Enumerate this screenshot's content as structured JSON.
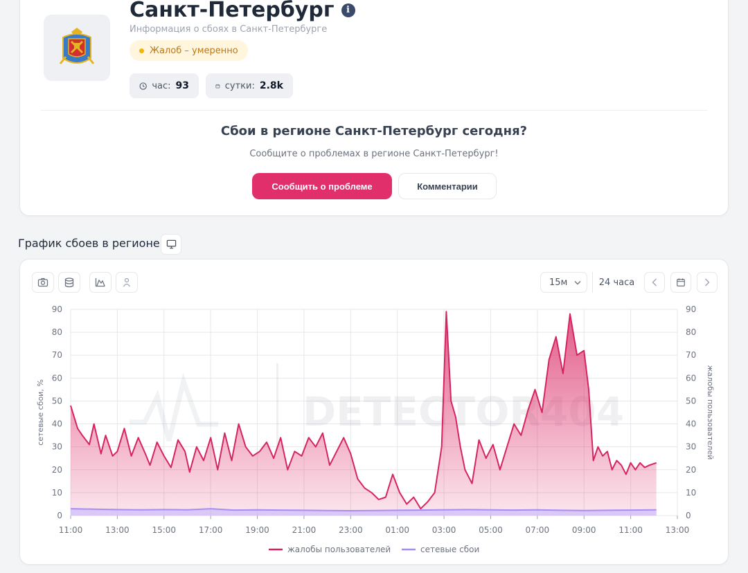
{
  "header": {
    "city_title": "Санкт-Петербург",
    "subtitle": "Информация о сбоях в Санкт-Петербурге",
    "status": "Жалоб – умеренно",
    "stats": {
      "hour_label": "час:",
      "hour_value": "93",
      "day_label": "сутки:",
      "day_value": "2.8k"
    }
  },
  "report": {
    "title": "Сбои в регионе Санкт-Петербург сегодня?",
    "subtitle": "Сообщите о проблемах в регионе Санкт-Петербург!",
    "report_button": "Сообщить о проблеме",
    "comments_button": "Комментарии"
  },
  "chart_section": {
    "title": "График сбоев в регионе",
    "interval": "15м",
    "range": "24 часа",
    "watermark": "DETECTOR404"
  },
  "colors": {
    "accent": "#e02f6b",
    "complaints": "#d6245f",
    "network": "#a78bfa",
    "status": "#f5b400"
  },
  "icons": [
    "info-icon",
    "clock-icon",
    "calendar-icon",
    "monitor-icon",
    "camera-icon",
    "database-icon",
    "area-chart-icon",
    "person-icon",
    "chevron-down-icon",
    "chevron-left-icon",
    "chevron-right-icon"
  ],
  "chart_data": {
    "type": "area",
    "x_ticks": [
      "11:00",
      "13:00",
      "15:00",
      "17:00",
      "19:00",
      "21:00",
      "23:00",
      "01:00",
      "03:00",
      "05:00",
      "07:00",
      "09:00",
      "11:00",
      "13:00"
    ],
    "x_range_hours": [
      0,
      26
    ],
    "ylim": [
      0,
      90
    ],
    "y_ticks": [
      0,
      10,
      20,
      30,
      40,
      50,
      60,
      70,
      80,
      90
    ],
    "ylabel_left": "сетевые сбои, %",
    "ylabel_right": "жалобы пользователей",
    "grid": true,
    "legend_position": "bottom",
    "series": [
      {
        "name": "жалобы пользователей",
        "x": [
          0,
          0.3,
          0.5,
          0.8,
          1.0,
          1.3,
          1.5,
          1.8,
          2.0,
          2.3,
          2.6,
          2.9,
          3.2,
          3.4,
          3.7,
          4.0,
          4.3,
          4.6,
          4.9,
          5.1,
          5.4,
          5.7,
          6.0,
          6.3,
          6.6,
          6.9,
          7.2,
          7.5,
          7.8,
          8.1,
          8.4,
          8.7,
          9.0,
          9.3,
          9.6,
          9.9,
          10.2,
          10.5,
          10.8,
          11.1,
          11.4,
          11.7,
          12.0,
          12.3,
          12.6,
          12.9,
          13.2,
          13.5,
          13.8,
          14.1,
          14.4,
          14.7,
          15.0,
          15.3,
          15.6,
          15.9,
          16.1,
          16.3,
          16.5,
          16.7,
          16.9,
          17.2,
          17.5,
          17.8,
          18.1,
          18.4,
          18.7,
          19.0,
          19.3,
          19.6,
          19.9,
          20.2,
          20.5,
          20.8,
          21.1,
          21.4,
          21.7,
          22.0,
          22.2,
          22.4,
          22.6,
          22.8,
          23.0,
          23.2,
          23.4,
          23.6,
          23.8,
          24.0,
          24.2,
          24.4,
          24.6,
          24.8,
          25.1
        ],
        "values": [
          48,
          38,
          35,
          31,
          40,
          27,
          35,
          26,
          28,
          38,
          26,
          34,
          27,
          22,
          32,
          26,
          21,
          33,
          28,
          19,
          30,
          24,
          34,
          20,
          36,
          24,
          40,
          30,
          26,
          28,
          32,
          25,
          34,
          20,
          28,
          26,
          34,
          30,
          36,
          22,
          28,
          34,
          27,
          16,
          12,
          10,
          7,
          8,
          18,
          10,
          5,
          8,
          3,
          6,
          10,
          30,
          89,
          50,
          43,
          30,
          20,
          14,
          33,
          25,
          31,
          20,
          30,
          40,
          35,
          46,
          55,
          45,
          68,
          78,
          62,
          88,
          70,
          72,
          55,
          24,
          30,
          26,
          28,
          20,
          24,
          22,
          18,
          23,
          20,
          23,
          21,
          22,
          23
        ],
        "color": "#d6245f"
      },
      {
        "name": "сетевые сбои",
        "x": [
          0,
          1,
          2,
          3,
          4,
          5,
          6,
          7,
          8,
          9,
          10,
          11,
          12,
          13,
          14,
          15,
          16,
          17,
          18,
          19,
          20,
          21,
          22,
          23,
          24,
          25.1
        ],
        "values": [
          3,
          2.8,
          2.6,
          2.5,
          2.6,
          2.5,
          3,
          2.4,
          2.5,
          2.4,
          2.3,
          2.2,
          2.1,
          2.2,
          2.3,
          2.4,
          2.5,
          2.6,
          2.5,
          2.4,
          2.5,
          2.3,
          2.2,
          2.3,
          2.4,
          2.5
        ],
        "color": "#a78bfa"
      }
    ]
  }
}
